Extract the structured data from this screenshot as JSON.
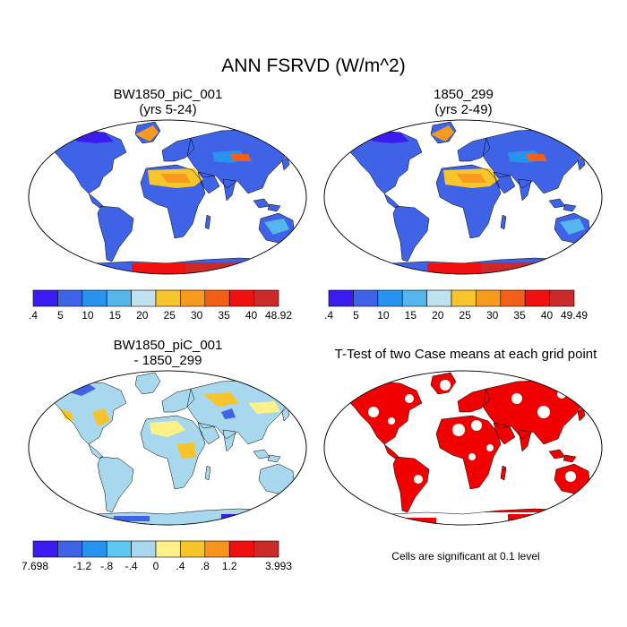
{
  "title": "ANN FSRVD (W/m^2)",
  "panels": [
    {
      "line1": "BW1850_piC_001",
      "line2": "(yrs 5-24)"
    },
    {
      "line1": "1850_299",
      "line2": "(yrs 2-49)"
    },
    {
      "line1": "BW1850_piC_001",
      "line2": "- 1850_299"
    },
    {
      "line1": "T-Test of two Case means at each grid point",
      "line2": ""
    }
  ],
  "colorbars": [
    {
      "colors": [
        "#3b1cf0",
        "#3f63e6",
        "#2793ee",
        "#54b6ea",
        "#bfe1f0",
        "#f7c62c",
        "#f79b1e",
        "#f45f17",
        "#f01010",
        "#cc2a2a"
      ],
      "labels": [
        ".4",
        "5",
        "10",
        "15",
        "20",
        "25",
        "30",
        "35",
        "40",
        "48.92"
      ]
    },
    {
      "colors": [
        "#3b1cf0",
        "#3f63e6",
        "#2793ee",
        "#54b6ea",
        "#bfe1f0",
        "#f7c62c",
        "#f79b1e",
        "#f45f17",
        "#f01010",
        "#cc2a2a"
      ],
      "labels": [
        ".4",
        "5",
        "10",
        "15",
        "20",
        "25",
        "30",
        "35",
        "40",
        "49.49"
      ]
    },
    {
      "colors": [
        "#3b1cf0",
        "#3f63e6",
        "#2793ee",
        "#5ec8f5",
        "#a8d8ee",
        "#fff18a",
        "#f8c42c",
        "#f7931e",
        "#f01010",
        "#cc2a2a"
      ],
      "labels": [
        "-7.698",
        "",
        "-1.2",
        "-.8",
        "-.4",
        "0",
        ".4",
        ".8",
        "1.2",
        "",
        "3.993"
      ]
    }
  ],
  "note": "Cells are significant at 0.1 level"
}
